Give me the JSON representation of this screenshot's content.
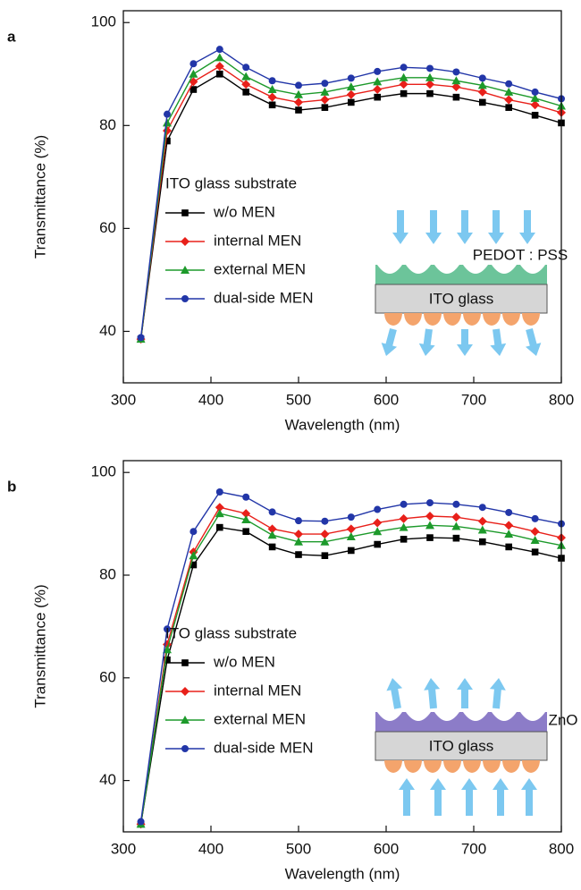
{
  "chart_data": [
    {
      "type": "line",
      "panel_label": "a",
      "x_label": "Wavelength (nm)",
      "y_label": "Transmittance (%)",
      "xlim": [
        300,
        800
      ],
      "ylim": [
        30,
        102.3
      ],
      "xticks": [
        300,
        400,
        500,
        600,
        700,
        800
      ],
      "yticks": [
        40,
        60,
        80,
        100
      ],
      "legend_title": "ITO glass substrate",
      "x": [
        320,
        350,
        380,
        410,
        440,
        470,
        500,
        530,
        560,
        590,
        620,
        650,
        680,
        710,
        740,
        770,
        800
      ],
      "series": [
        {
          "name": "w/o MEN",
          "color": "#000000",
          "marker": "square",
          "values": [
            38.5,
            77,
            87,
            90,
            86.5,
            84,
            83,
            83.5,
            84.5,
            85.5,
            86.2,
            86.2,
            85.5,
            84.5,
            83.5,
            82,
            80.5
          ]
        },
        {
          "name": "internal MEN",
          "color": "#e8201a",
          "marker": "diamond",
          "values": [
            38.5,
            79,
            88.5,
            91.5,
            88,
            85.5,
            84.5,
            85,
            86,
            87,
            88,
            88,
            87.5,
            86.5,
            85,
            84,
            82.5
          ]
        },
        {
          "name": "external MEN",
          "color": "#1d9a2b",
          "marker": "triangle",
          "values": [
            38.5,
            80.5,
            90,
            93.2,
            89.5,
            87,
            86,
            86.5,
            87.5,
            88.5,
            89.3,
            89.3,
            88.7,
            87.8,
            86.5,
            85.3,
            83.8
          ]
        },
        {
          "name": "dual-side MEN",
          "color": "#2236a8",
          "marker": "circle",
          "values": [
            38.8,
            82.2,
            92,
            94.8,
            91.3,
            88.7,
            87.8,
            88.2,
            89.2,
            90.5,
            91.3,
            91.1,
            90.4,
            89.2,
            88.1,
            86.5,
            85.2
          ]
        }
      ],
      "inset": {
        "layer_label": "PEDOT : PSS",
        "substrate_label": "ITO glass"
      }
    },
    {
      "type": "line",
      "panel_label": "b",
      "x_label": "Wavelength (nm)",
      "y_label": "Transmittance (%)",
      "xlim": [
        300,
        800
      ],
      "ylim": [
        30,
        102.3
      ],
      "xticks": [
        300,
        400,
        500,
        600,
        700,
        800
      ],
      "yticks": [
        40,
        60,
        80,
        100
      ],
      "legend_title": "ITO glass substrate",
      "x": [
        320,
        350,
        380,
        410,
        440,
        470,
        500,
        530,
        560,
        590,
        620,
        650,
        680,
        710,
        740,
        770,
        800
      ],
      "series": [
        {
          "name": "w/o MEN",
          "color": "#000000",
          "marker": "square",
          "values": [
            31.5,
            63.5,
            82,
            89.3,
            88.5,
            85.5,
            84,
            83.8,
            84.8,
            86,
            87,
            87.3,
            87.2,
            86.5,
            85.5,
            84.5,
            83.3
          ]
        },
        {
          "name": "internal MEN",
          "color": "#e8201a",
          "marker": "diamond",
          "values": [
            31.5,
            66.5,
            84.5,
            93.2,
            92,
            89,
            88,
            88,
            89,
            90.2,
            91,
            91.5,
            91.3,
            90.5,
            89.7,
            88.5,
            87.3
          ]
        },
        {
          "name": "external MEN",
          "color": "#1d9a2b",
          "marker": "triangle",
          "values": [
            31.5,
            65.5,
            83.8,
            92,
            90.8,
            87.8,
            86.5,
            86.5,
            87.5,
            88.5,
            89.3,
            89.7,
            89.5,
            88.8,
            88,
            86.8,
            85.8
          ]
        },
        {
          "name": "dual-side MEN",
          "color": "#2236a8",
          "marker": "circle",
          "values": [
            32,
            69.5,
            88.5,
            96.2,
            95.2,
            92.3,
            90.6,
            90.5,
            91.3,
            92.8,
            93.8,
            94.1,
            93.8,
            93.2,
            92.2,
            91,
            90
          ]
        }
      ],
      "inset": {
        "layer_label": "ZnO",
        "substrate_label": "ITO glass"
      }
    }
  ]
}
